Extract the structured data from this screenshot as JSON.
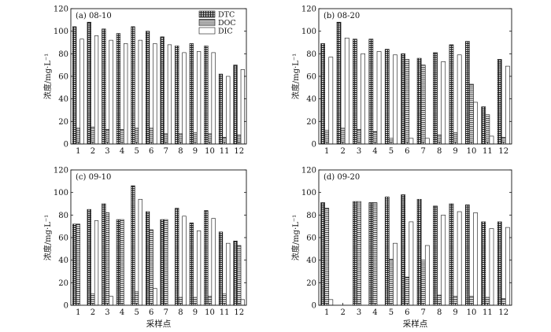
{
  "chart_data": [
    {
      "type": "bar",
      "title": "(a) 08-10",
      "ylabel": "浓度/mg·L⁻¹",
      "ylim": [
        0,
        120
      ],
      "yticks": [
        "0",
        "20",
        "40",
        "60",
        "80",
        "100",
        "120"
      ],
      "categories": [
        "1",
        "2",
        "3",
        "4",
        "5",
        "6",
        "7",
        "8",
        "9",
        "10",
        "11",
        "12"
      ],
      "legend": [
        "DTC",
        "DOC",
        "DIC"
      ],
      "series": [
        {
          "name": "DTC",
          "values": [
            104,
            108,
            102,
            98,
            104,
            100,
            95,
            87,
            89,
            87,
            62,
            70
          ]
        },
        {
          "name": "DOC",
          "values": [
            14,
            15,
            13,
            13,
            14,
            14,
            9,
            9,
            10,
            9,
            6,
            8
          ]
        },
        {
          "name": "DIC",
          "values": [
            93,
            96,
            92,
            89,
            92,
            89,
            88,
            81,
            82,
            81,
            60,
            66
          ]
        }
      ]
    },
    {
      "type": "bar",
      "title": "(b) 08-20",
      "ylabel": "浓度/mg·L⁻¹",
      "ylim": [
        0,
        120
      ],
      "yticks": [
        "0",
        "20",
        "40",
        "60",
        "80",
        "100",
        "120"
      ],
      "categories": [
        "1",
        "2",
        "3",
        "4",
        "5",
        "6",
        "7",
        "8",
        "9",
        "10",
        "11",
        "12"
      ],
      "series": [
        {
          "name": "DTC",
          "values": [
            89,
            108,
            93,
            93,
            84,
            80,
            76,
            81,
            88,
            91,
            33,
            75
          ]
        },
        {
          "name": "DOC",
          "values": [
            12,
            14,
            13,
            11,
            5,
            75,
            70,
            8,
            10,
            53,
            26,
            6
          ]
        },
        {
          "name": "DIC",
          "values": [
            77,
            94,
            80,
            82,
            79,
            5,
            5,
            73,
            79,
            37,
            7,
            69
          ]
        }
      ]
    },
    {
      "type": "bar",
      "title": "(c) 09-10",
      "ylabel": "浓度/mg·L⁻¹",
      "ylim": [
        0,
        120
      ],
      "yticks": [
        "0",
        "20",
        "40",
        "60",
        "80",
        "100",
        "120"
      ],
      "categories": [
        "1",
        "2",
        "3",
        "4",
        "5",
        "6",
        "7",
        "8",
        "9",
        "10",
        "11",
        "12"
      ],
      "xlabel": "采样点",
      "series": [
        {
          "name": "DTC",
          "values": [
            72,
            85,
            90,
            76,
            106,
            83,
            76,
            86,
            73,
            84,
            65,
            57
          ]
        },
        {
          "name": "DOC",
          "values": [
            72,
            10,
            82,
            76,
            12,
            67,
            76,
            7,
            7,
            8,
            10,
            53
          ]
        },
        {
          "name": "DIC",
          "values": [
            0,
            75,
            8,
            0,
            94,
            15,
            0,
            79,
            66,
            77,
            55,
            5
          ]
        }
      ]
    },
    {
      "type": "bar",
      "title": "(d) 09-20",
      "ylabel": "浓度/mg·L⁻¹",
      "ylim": [
        0,
        120
      ],
      "yticks": [
        "0",
        "20",
        "40",
        "60",
        "80",
        "100",
        "120"
      ],
      "categories": [
        "1",
        "2",
        "3",
        "4",
        "5",
        "6",
        "7",
        "8",
        "9",
        "10",
        "11",
        "12"
      ],
      "xlabel": "采样点",
      "series": [
        {
          "name": "DTC",
          "values": [
            91,
            0,
            92,
            91,
            96,
            98,
            94,
            88,
            90,
            89,
            74,
            74
          ]
        },
        {
          "name": "DOC",
          "values": [
            86,
            0,
            92,
            91,
            41,
            25,
            40,
            9,
            8,
            8,
            7,
            6
          ]
        },
        {
          "name": "DIC",
          "values": [
            5,
            0,
            0,
            0,
            55,
            74,
            53,
            80,
            83,
            82,
            68,
            69
          ]
        }
      ]
    }
  ]
}
